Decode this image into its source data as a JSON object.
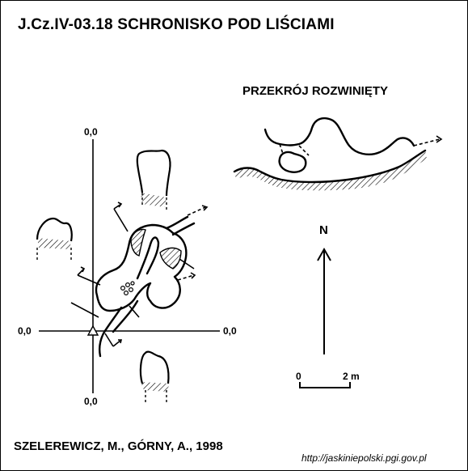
{
  "title": "J.Cz.IV-03.18 SCHRONISKO POD LIŚCIAMI",
  "section_title": "PRZEKRÓJ ROZWINIĘTY",
  "coordinates": {
    "top": "0,0",
    "left": "0,0",
    "right": "0,0",
    "bottom": "0,0"
  },
  "north_label": "N",
  "scale": {
    "start": "0",
    "end": "2 m"
  },
  "authors": "SZELEREWICZ, M., GÓRNY, A., 1998",
  "source_url": "http://jaskiniepolski.pgi.gov.pl"
}
